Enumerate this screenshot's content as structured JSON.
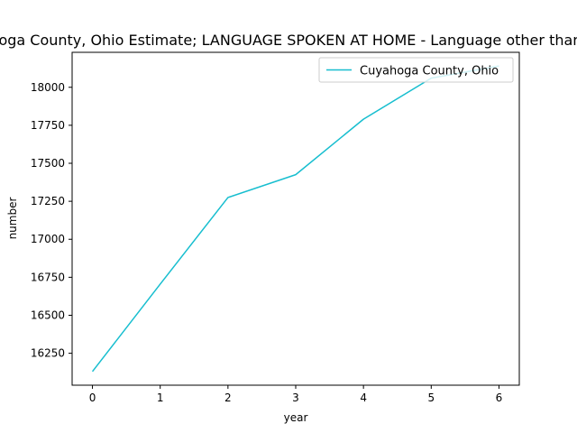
{
  "chart_data": {
    "type": "line",
    "title": "Cuyahoga County, Ohio Estimate; LANGUAGE SPOKEN AT HOME - Language other than English",
    "xlabel": "year",
    "ylabel": "number",
    "xlim": [
      -0.3,
      6.3
    ],
    "ylim": [
      16040,
      18230
    ],
    "xticks": [
      0,
      1,
      2,
      3,
      4,
      5,
      6
    ],
    "yticks": [
      16250,
      16500,
      16750,
      17000,
      17250,
      17500,
      17750,
      18000
    ],
    "grid": false,
    "legend_position": "top-right",
    "series": [
      {
        "name": "Cuyahoga County, Ohio",
        "color": "#17becf",
        "x": [
          0,
          1,
          2,
          3,
          4,
          5,
          6
        ],
        "y": [
          16130,
          16705,
          17275,
          17425,
          17790,
          18060,
          18140
        ]
      }
    ]
  }
}
